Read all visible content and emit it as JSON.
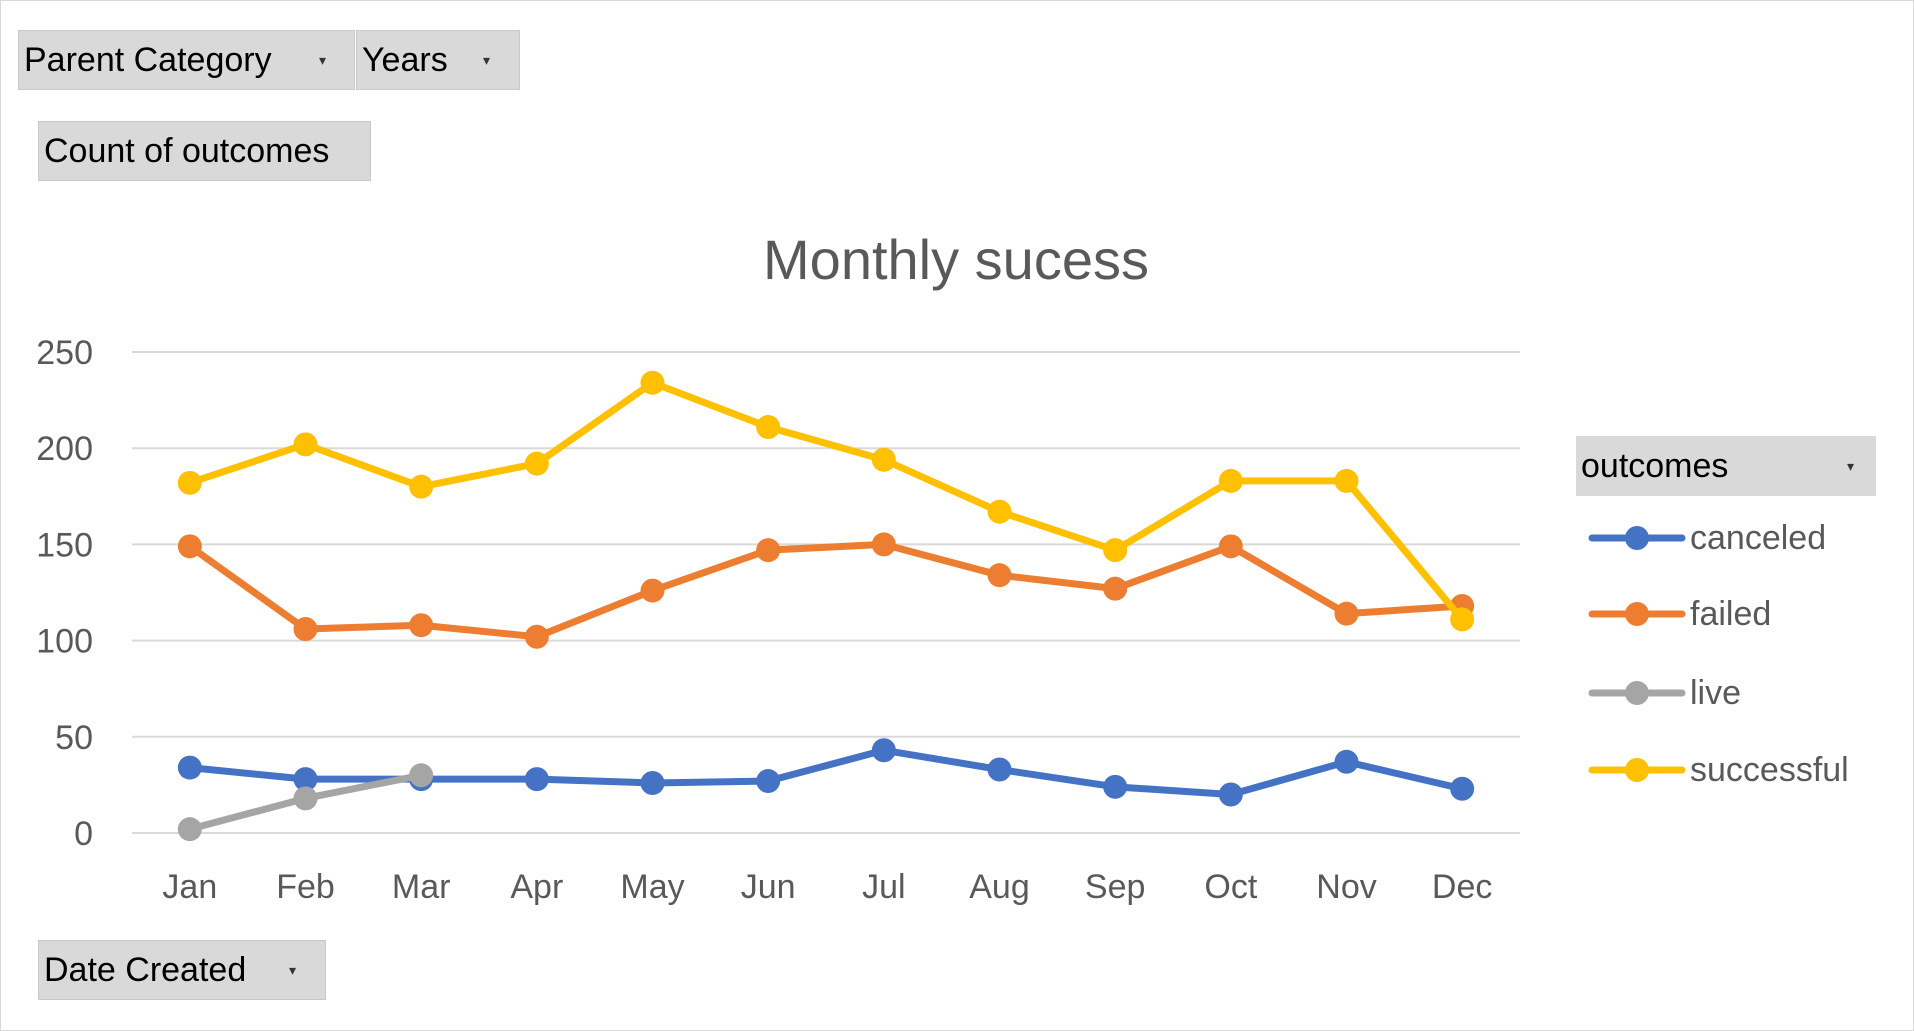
{
  "filters": {
    "parent_category": "Parent Category",
    "years": "Years",
    "values_field": "Count of outcomes",
    "axis_field": "Date Created",
    "legend_field": "outcomes"
  },
  "colors": {
    "canceled": "#4472C4",
    "failed": "#ED7D31",
    "live": "#A5A5A5",
    "successful": "#FFC000",
    "gridline": "#d9d9d9",
    "text": "#595959"
  },
  "chart_data": {
    "type": "line",
    "title": "Monthly sucess",
    "xlabel": "",
    "ylabel": "",
    "categories": [
      "Jan",
      "Feb",
      "Mar",
      "Apr",
      "May",
      "Jun",
      "Jul",
      "Aug",
      "Sep",
      "Oct",
      "Nov",
      "Dec"
    ],
    "ylim": [
      0,
      250
    ],
    "yticks": [
      0,
      50,
      100,
      150,
      200,
      250
    ],
    "grid": true,
    "legend": "right",
    "series": [
      {
        "name": "canceled",
        "values": [
          34,
          28,
          28,
          28,
          26,
          27,
          43,
          33,
          24,
          20,
          37,
          23
        ]
      },
      {
        "name": "failed",
        "values": [
          149,
          106,
          108,
          102,
          126,
          147,
          150,
          134,
          127,
          149,
          114,
          118
        ]
      },
      {
        "name": "live",
        "values": [
          2,
          18,
          30,
          null,
          null,
          null,
          null,
          null,
          null,
          null,
          null,
          null
        ]
      },
      {
        "name": "successful",
        "values": [
          182,
          202,
          180,
          192,
          234,
          211,
          194,
          167,
          147,
          183,
          183,
          111
        ]
      }
    ]
  }
}
